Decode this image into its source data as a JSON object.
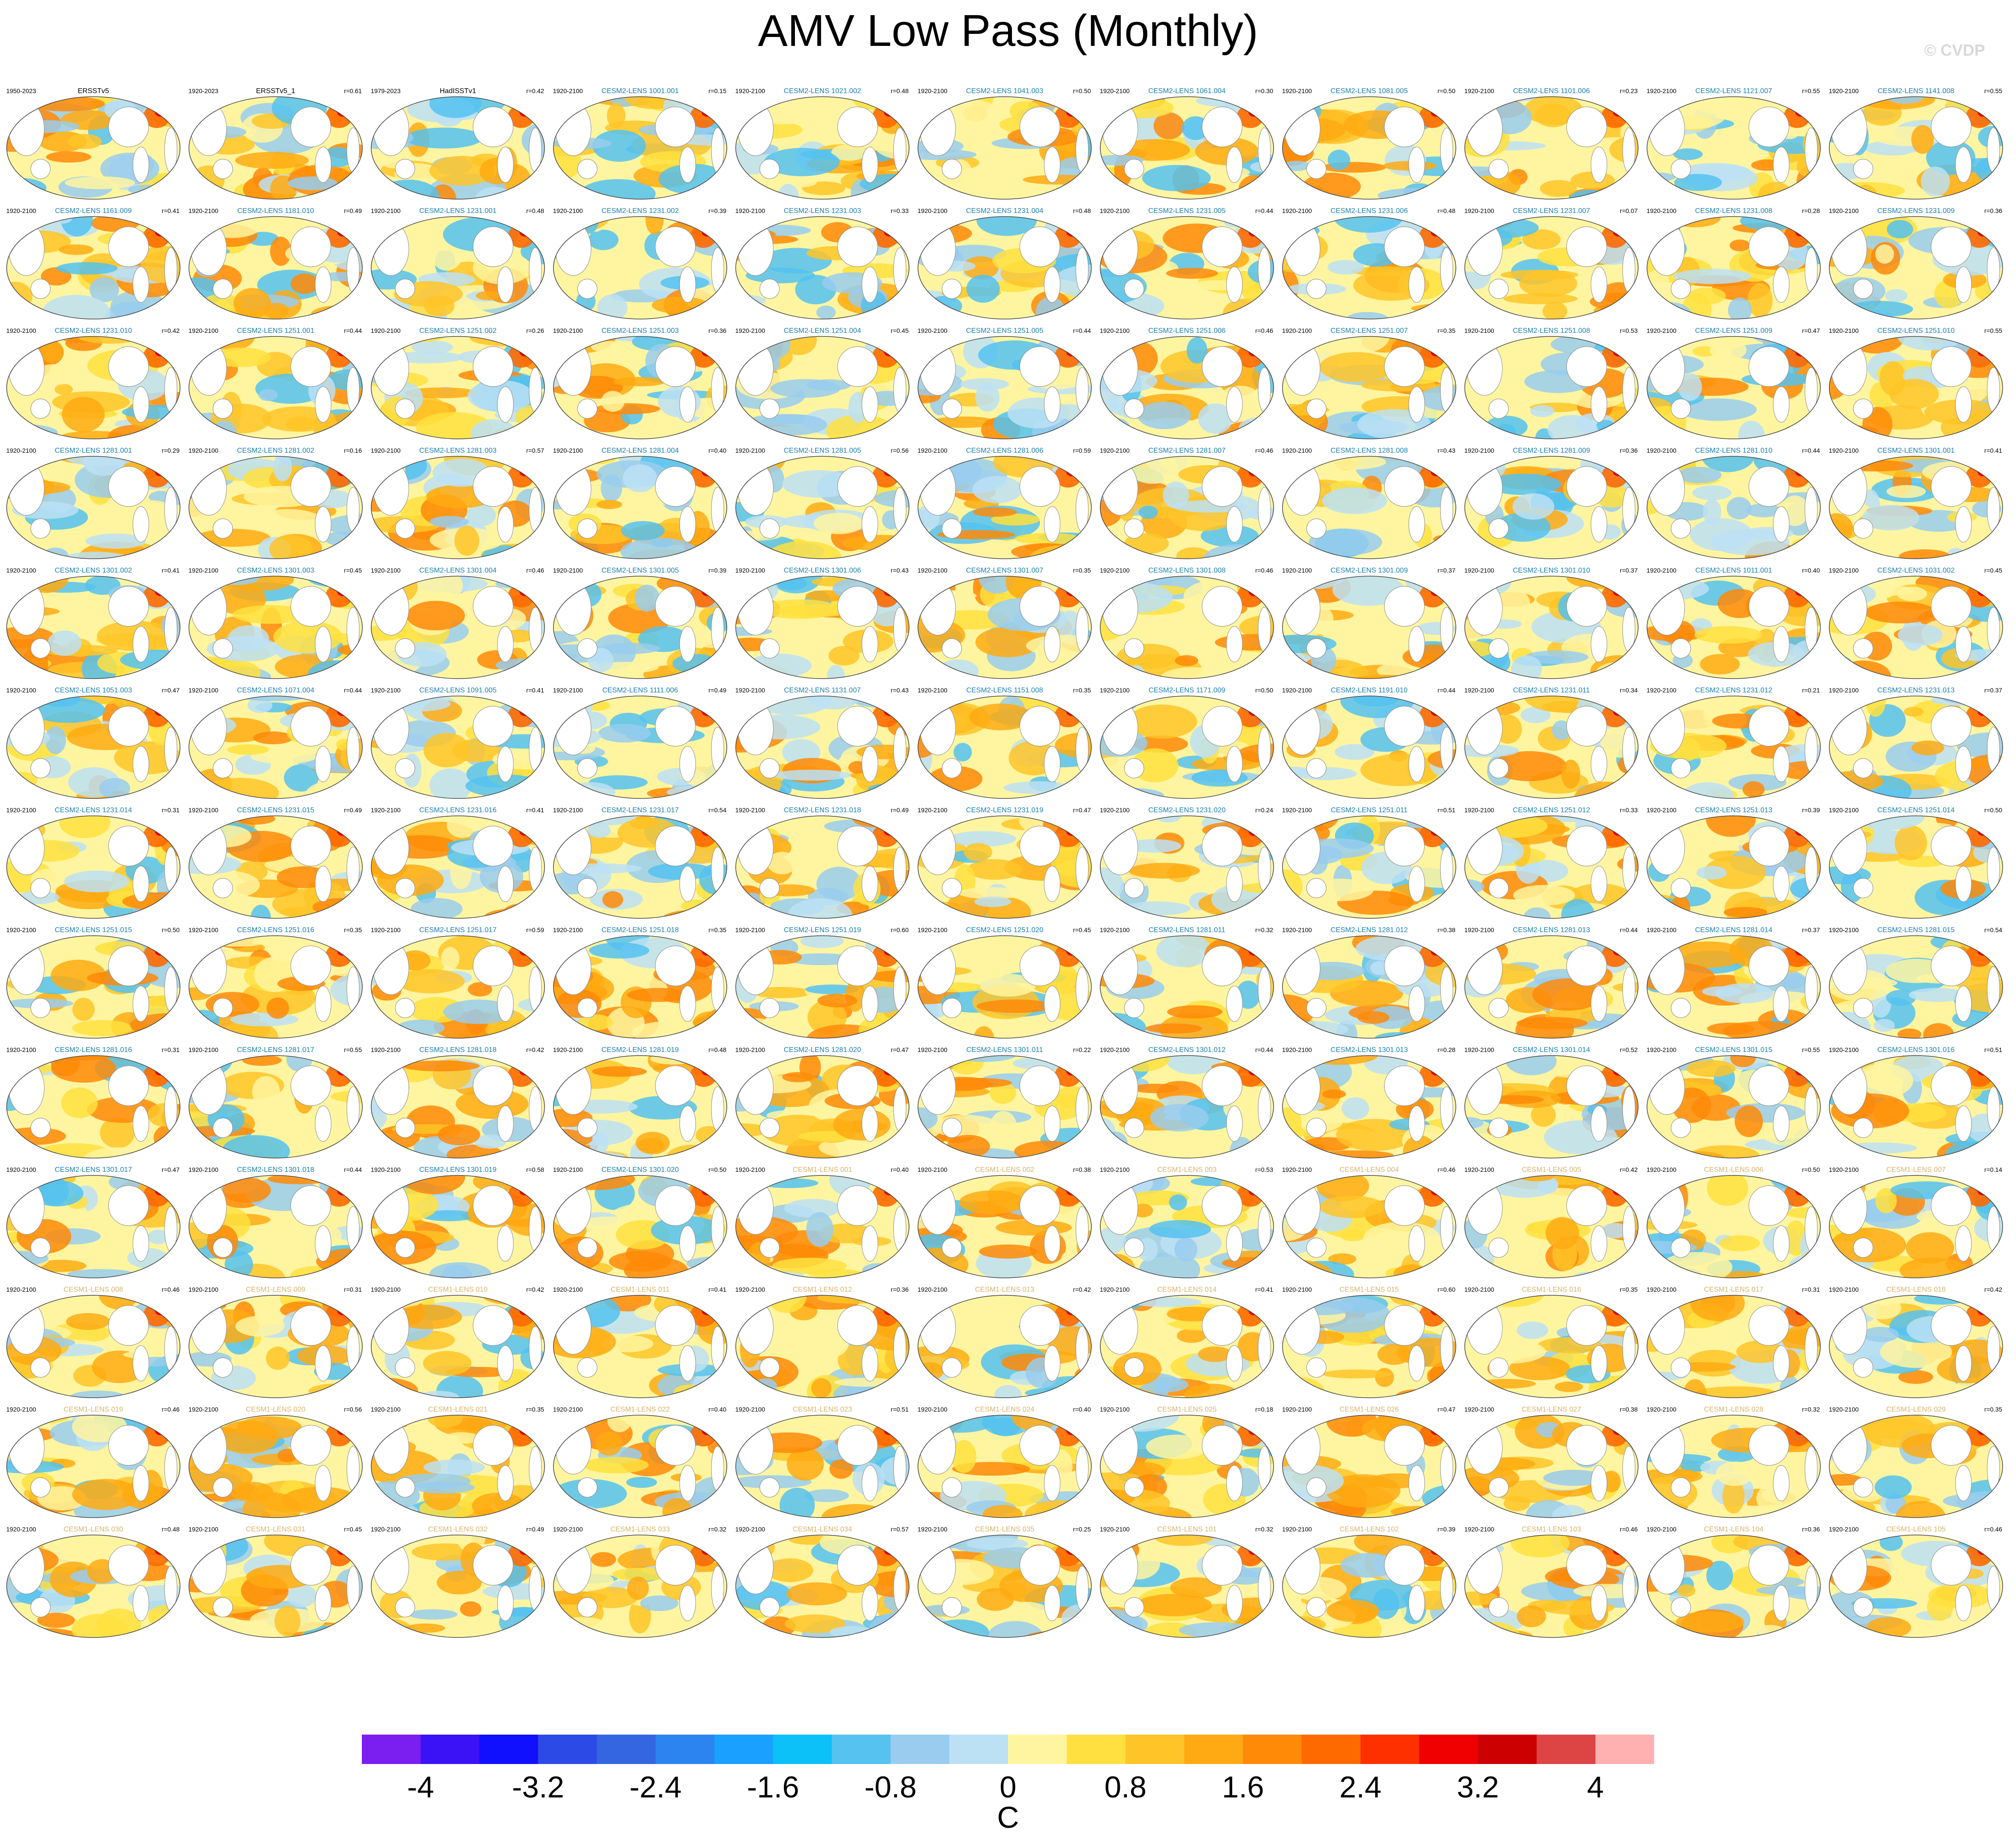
{
  "title": "AMV Low Pass (Monthly)",
  "watermark": "© CVDP",
  "units": "C",
  "colorbar": {
    "colors": [
      "#7b1ef0",
      "#3a12f5",
      "#1010ff",
      "#2c4be6",
      "#3366e0",
      "#2b84f0",
      "#1aa0ff",
      "#0cc0f8",
      "#55c2f0",
      "#99ccee",
      "#bce0f4",
      "#fff5a0",
      "#ffe040",
      "#ffc428",
      "#ffaa12",
      "#ff8a08",
      "#ff6a00",
      "#ff3000",
      "#f00000",
      "#cc0000",
      "#dd4444",
      "#ffb0b0"
    ],
    "tick_labels": [
      "-4",
      "-3.2",
      "-2.4",
      "-1.6",
      "-0.8",
      "0",
      "0.8",
      "1.6",
      "2.4",
      "3.2",
      "4"
    ]
  },
  "panel_name_colors": {
    "obs": "#000000",
    "cesm2": "#1a7fb0",
    "cesm1": "#d9b36a"
  },
  "panels": [
    {
      "years": "1950-2023",
      "name": "ERSSTv5",
      "r": "",
      "group": "obs"
    },
    {
      "years": "1920-2023",
      "name": "ERSSTv5_1",
      "r": "r=0.61",
      "group": "obs"
    },
    {
      "years": "1979-2023",
      "name": "HadISSTv1",
      "r": "r=0.42",
      "group": "obs"
    },
    {
      "years": "1920-2100",
      "name": "CESM2-LENS 1001.001",
      "r": "r=0.15",
      "group": "cesm2"
    },
    {
      "years": "1920-2100",
      "name": "CESM2-LENS 1021.002",
      "r": "r=0.48",
      "group": "cesm2"
    },
    {
      "years": "1920-2100",
      "name": "CESM2-LENS 1041.003",
      "r": "r=0.50",
      "group": "cesm2"
    },
    {
      "years": "1920-2100",
      "name": "CESM2-LENS 1061.004",
      "r": "r=0.30",
      "group": "cesm2"
    },
    {
      "years": "1920-2100",
      "name": "CESM2-LENS 1081.005",
      "r": "r=0.50",
      "group": "cesm2"
    },
    {
      "years": "1920-2100",
      "name": "CESM2-LENS 1101.006",
      "r": "r=0.23",
      "group": "cesm2"
    },
    {
      "years": "1920-2100",
      "name": "CESM2-LENS 1121.007",
      "r": "r=0.55",
      "group": "cesm2"
    },
    {
      "years": "1920-2100",
      "name": "CESM2-LENS 1141.008",
      "r": "r=0.55",
      "group": "cesm2"
    },
    {
      "years": "1920-2100",
      "name": "CESM2-LENS 1161.009",
      "r": "r=0.41",
      "group": "cesm2"
    },
    {
      "years": "1920-2100",
      "name": "CESM2-LENS 1181.010",
      "r": "r=0.49",
      "group": "cesm2"
    },
    {
      "years": "1920-2100",
      "name": "CESM2-LENS 1231.001",
      "r": "r=0.48",
      "group": "cesm2"
    },
    {
      "years": "1920-2100",
      "name": "CESM2-LENS 1231.002",
      "r": "r=0.39",
      "group": "cesm2"
    },
    {
      "years": "1920-2100",
      "name": "CESM2-LENS 1231.003",
      "r": "r=0.33",
      "group": "cesm2"
    },
    {
      "years": "1920-2100",
      "name": "CESM2-LENS 1231.004",
      "r": "r=0.48",
      "group": "cesm2"
    },
    {
      "years": "1920-2100",
      "name": "CESM2-LENS 1231.005",
      "r": "r=0.44",
      "group": "cesm2"
    },
    {
      "years": "1920-2100",
      "name": "CESM2-LENS 1231.006",
      "r": "r=0.48",
      "group": "cesm2"
    },
    {
      "years": "1920-2100",
      "name": "CESM2-LENS 1231.007",
      "r": "r=0.07",
      "group": "cesm2"
    },
    {
      "years": "1920-2100",
      "name": "CESM2-LENS 1231.008",
      "r": "r=0.28",
      "group": "cesm2"
    },
    {
      "years": "1920-2100",
      "name": "CESM2-LENS 1231.009",
      "r": "r=0.36",
      "group": "cesm2"
    },
    {
      "years": "1920-2100",
      "name": "CESM2-LENS 1231.010",
      "r": "r=0.42",
      "group": "cesm2"
    },
    {
      "years": "1920-2100",
      "name": "CESM2-LENS 1251.001",
      "r": "r=0.44",
      "group": "cesm2"
    },
    {
      "years": "1920-2100",
      "name": "CESM2-LENS 1251.002",
      "r": "r=0.26",
      "group": "cesm2"
    },
    {
      "years": "1920-2100",
      "name": "CESM2-LENS 1251.003",
      "r": "r=0.36",
      "group": "cesm2"
    },
    {
      "years": "1920-2100",
      "name": "CESM2-LENS 1251.004",
      "r": "r=0.45",
      "group": "cesm2"
    },
    {
      "years": "1920-2100",
      "name": "CESM2-LENS 1251.005",
      "r": "r=0.44",
      "group": "cesm2"
    },
    {
      "years": "1920-2100",
      "name": "CESM2-LENS 1251.006",
      "r": "r=0.46",
      "group": "cesm2"
    },
    {
      "years": "1920-2100",
      "name": "CESM2-LENS 1251.007",
      "r": "r=0.35",
      "group": "cesm2"
    },
    {
      "years": "1920-2100",
      "name": "CESM2-LENS 1251.008",
      "r": "r=0.53",
      "group": "cesm2"
    },
    {
      "years": "1920-2100",
      "name": "CESM2-LENS 1251.009",
      "r": "r=0.47",
      "group": "cesm2"
    },
    {
      "years": "1920-2100",
      "name": "CESM2-LENS 1251.010",
      "r": "r=0.55",
      "group": "cesm2"
    },
    {
      "years": "1920-2100",
      "name": "CESM2-LENS 1281.001",
      "r": "r=0.29",
      "group": "cesm2"
    },
    {
      "years": "1920-2100",
      "name": "CESM2-LENS 1281.002",
      "r": "r=0.16",
      "group": "cesm2"
    },
    {
      "years": "1920-2100",
      "name": "CESM2-LENS 1281.003",
      "r": "r=0.57",
      "group": "cesm2"
    },
    {
      "years": "1920-2100",
      "name": "CESM2-LENS 1281.004",
      "r": "r=0.40",
      "group": "cesm2"
    },
    {
      "years": "1920-2100",
      "name": "CESM2-LENS 1281.005",
      "r": "r=0.56",
      "group": "cesm2"
    },
    {
      "years": "1920-2100",
      "name": "CESM2-LENS 1281.006",
      "r": "r=0.59",
      "group": "cesm2"
    },
    {
      "years": "1920-2100",
      "name": "CESM2-LENS 1281.007",
      "r": "r=0.46",
      "group": "cesm2"
    },
    {
      "years": "1920-2100",
      "name": "CESM2-LENS 1281.008",
      "r": "r=0.43",
      "group": "cesm2"
    },
    {
      "years": "1920-2100",
      "name": "CESM2-LENS 1281.009",
      "r": "r=0.36",
      "group": "cesm2"
    },
    {
      "years": "1920-2100",
      "name": "CESM2-LENS 1281.010",
      "r": "r=0.44",
      "group": "cesm2"
    },
    {
      "years": "1920-2100",
      "name": "CESM2-LENS 1301.001",
      "r": "r=0.41",
      "group": "cesm2"
    },
    {
      "years": "1920-2100",
      "name": "CESM2-LENS 1301.002",
      "r": "r=0.41",
      "group": "cesm2"
    },
    {
      "years": "1920-2100",
      "name": "CESM2-LENS 1301.003",
      "r": "r=0.45",
      "group": "cesm2"
    },
    {
      "years": "1920-2100",
      "name": "CESM2-LENS 1301.004",
      "r": "r=0.46",
      "group": "cesm2"
    },
    {
      "years": "1920-2100",
      "name": "CESM2-LENS 1301.005",
      "r": "r=0.39",
      "group": "cesm2"
    },
    {
      "years": "1920-2100",
      "name": "CESM2-LENS 1301.006",
      "r": "r=0.43",
      "group": "cesm2"
    },
    {
      "years": "1920-2100",
      "name": "CESM2-LENS 1301.007",
      "r": "r=0.35",
      "group": "cesm2"
    },
    {
      "years": "1920-2100",
      "name": "CESM2-LENS 1301.008",
      "r": "r=0.46",
      "group": "cesm2"
    },
    {
      "years": "1920-2100",
      "name": "CESM2-LENS 1301.009",
      "r": "r=0.37",
      "group": "cesm2"
    },
    {
      "years": "1920-2100",
      "name": "CESM2-LENS 1301.010",
      "r": "r=0.37",
      "group": "cesm2"
    },
    {
      "years": "1920-2100",
      "name": "CESM2-LENS 1011.001",
      "r": "r=0.40",
      "group": "cesm2"
    },
    {
      "years": "1920-2100",
      "name": "CESM2-LENS 1031.002",
      "r": "r=0.45",
      "group": "cesm2"
    },
    {
      "years": "1920-2100",
      "name": "CESM2-LENS 1051.003",
      "r": "r=0.47",
      "group": "cesm2"
    },
    {
      "years": "1920-2100",
      "name": "CESM2-LENS 1071.004",
      "r": "r=0.44",
      "group": "cesm2"
    },
    {
      "years": "1920-2100",
      "name": "CESM2-LENS 1091.005",
      "r": "r=0.41",
      "group": "cesm2"
    },
    {
      "years": "1920-2100",
      "name": "CESM2-LENS 1111.006",
      "r": "r=0.49",
      "group": "cesm2"
    },
    {
      "years": "1920-2100",
      "name": "CESM2-LENS 1131.007",
      "r": "r=0.43",
      "group": "cesm2"
    },
    {
      "years": "1920-2100",
      "name": "CESM2-LENS 1151.008",
      "r": "r=0.35",
      "group": "cesm2"
    },
    {
      "years": "1920-2100",
      "name": "CESM2-LENS 1171.009",
      "r": "r=0.50",
      "group": "cesm2"
    },
    {
      "years": "1920-2100",
      "name": "CESM2-LENS 1191.010",
      "r": "r=0.44",
      "group": "cesm2"
    },
    {
      "years": "1920-2100",
      "name": "CESM2-LENS 1231.011",
      "r": "r=0.34",
      "group": "cesm2"
    },
    {
      "years": "1920-2100",
      "name": "CESM2-LENS 1231.012",
      "r": "r=0.21",
      "group": "cesm2"
    },
    {
      "years": "1920-2100",
      "name": "CESM2-LENS 1231.013",
      "r": "r=0.37",
      "group": "cesm2"
    },
    {
      "years": "1920-2100",
      "name": "CESM2-LENS 1231.014",
      "r": "r=0.31",
      "group": "cesm2"
    },
    {
      "years": "1920-2100",
      "name": "CESM2-LENS 1231.015",
      "r": "r=0.49",
      "group": "cesm2"
    },
    {
      "years": "1920-2100",
      "name": "CESM2-LENS 1231.016",
      "r": "r=0.41",
      "group": "cesm2"
    },
    {
      "years": "1920-2100",
      "name": "CESM2-LENS 1231.017",
      "r": "r=0.54",
      "group": "cesm2"
    },
    {
      "years": "1920-2100",
      "name": "CESM2-LENS 1231.018",
      "r": "r=0.49",
      "group": "cesm2"
    },
    {
      "years": "1920-2100",
      "name": "CESM2-LENS 1231.019",
      "r": "r=0.47",
      "group": "cesm2"
    },
    {
      "years": "1920-2100",
      "name": "CESM2-LENS 1231.020",
      "r": "r=0.24",
      "group": "cesm2"
    },
    {
      "years": "1920-2100",
      "name": "CESM2-LENS 1251.011",
      "r": "r=0.51",
      "group": "cesm2"
    },
    {
      "years": "1920-2100",
      "name": "CESM2-LENS 1251.012",
      "r": "r=0.33",
      "group": "cesm2"
    },
    {
      "years": "1920-2100",
      "name": "CESM2-LENS 1251.013",
      "r": "r=0.39",
      "group": "cesm2"
    },
    {
      "years": "1920-2100",
      "name": "CESM2-LENS 1251.014",
      "r": "r=0.50",
      "group": "cesm2"
    },
    {
      "years": "1920-2100",
      "name": "CESM2-LENS 1251.015",
      "r": "r=0.50",
      "group": "cesm2"
    },
    {
      "years": "1920-2100",
      "name": "CESM2-LENS 1251.016",
      "r": "r=0.35",
      "group": "cesm2"
    },
    {
      "years": "1920-2100",
      "name": "CESM2-LENS 1251.017",
      "r": "r=0.59",
      "group": "cesm2"
    },
    {
      "years": "1920-2100",
      "name": "CESM2-LENS 1251.018",
      "r": "r=0.35",
      "group": "cesm2"
    },
    {
      "years": "1920-2100",
      "name": "CESM2-LENS 1251.019",
      "r": "r=0.60",
      "group": "cesm2"
    },
    {
      "years": "1920-2100",
      "name": "CESM2-LENS 1251.020",
      "r": "r=0.45",
      "group": "cesm2"
    },
    {
      "years": "1920-2100",
      "name": "CESM2-LENS 1281.011",
      "r": "r=0.32",
      "group": "cesm2"
    },
    {
      "years": "1920-2100",
      "name": "CESM2-LENS 1281.012",
      "r": "r=0.38",
      "group": "cesm2"
    },
    {
      "years": "1920-2100",
      "name": "CESM2-LENS 1281.013",
      "r": "r=0.44",
      "group": "cesm2"
    },
    {
      "years": "1920-2100",
      "name": "CESM2-LENS 1281.014",
      "r": "r=0.37",
      "group": "cesm2"
    },
    {
      "years": "1920-2100",
      "name": "CESM2-LENS 1281.015",
      "r": "r=0.54",
      "group": "cesm2"
    },
    {
      "years": "1920-2100",
      "name": "CESM2-LENS 1281.016",
      "r": "r=0.31",
      "group": "cesm2"
    },
    {
      "years": "1920-2100",
      "name": "CESM2-LENS 1281.017",
      "r": "r=0.55",
      "group": "cesm2"
    },
    {
      "years": "1920-2100",
      "name": "CESM2-LENS 1281.018",
      "r": "r=0.42",
      "group": "cesm2"
    },
    {
      "years": "1920-2100",
      "name": "CESM2-LENS 1281.019",
      "r": "r=0.48",
      "group": "cesm2"
    },
    {
      "years": "1920-2100",
      "name": "CESM2-LENS 1281.020",
      "r": "r=0.47",
      "group": "cesm2"
    },
    {
      "years": "1920-2100",
      "name": "CESM2-LENS 1301.011",
      "r": "r=0.22",
      "group": "cesm2"
    },
    {
      "years": "1920-2100",
      "name": "CESM2-LENS 1301.012",
      "r": "r=0.44",
      "group": "cesm2"
    },
    {
      "years": "1920-2100",
      "name": "CESM2-LENS 1301.013",
      "r": "r=0.28",
      "group": "cesm2"
    },
    {
      "years": "1920-2100",
      "name": "CESM2-LENS 1301.014",
      "r": "r=0.52",
      "group": "cesm2"
    },
    {
      "years": "1920-2100",
      "name": "CESM2-LENS 1301.015",
      "r": "r=0.55",
      "group": "cesm2"
    },
    {
      "years": "1920-2100",
      "name": "CESM2-LENS 1301.016",
      "r": "r=0.51",
      "group": "cesm2"
    },
    {
      "years": "1920-2100",
      "name": "CESM2-LENS 1301.017",
      "r": "r=0.47",
      "group": "cesm2"
    },
    {
      "years": "1920-2100",
      "name": "CESM2-LENS 1301.018",
      "r": "r=0.44",
      "group": "cesm2"
    },
    {
      "years": "1920-2100",
      "name": "CESM2-LENS 1301.019",
      "r": "r=0.58",
      "group": "cesm2"
    },
    {
      "years": "1920-2100",
      "name": "CESM2-LENS 1301.020",
      "r": "r=0.50",
      "group": "cesm2"
    },
    {
      "years": "1920-2100",
      "name": "CESM1-LENS 001",
      "r": "r=0.40",
      "group": "cesm1"
    },
    {
      "years": "1920-2100",
      "name": "CESM1-LENS 002",
      "r": "r=0.38",
      "group": "cesm1"
    },
    {
      "years": "1920-2100",
      "name": "CESM1-LENS 003",
      "r": "r=0.53",
      "group": "cesm1"
    },
    {
      "years": "1920-2100",
      "name": "CESM1-LENS 004",
      "r": "r=0.46",
      "group": "cesm1"
    },
    {
      "years": "1920-2100",
      "name": "CESM1-LENS 005",
      "r": "r=0.42",
      "group": "cesm1"
    },
    {
      "years": "1920-2100",
      "name": "CESM1-LENS 006",
      "r": "r=0.50",
      "group": "cesm1"
    },
    {
      "years": "1920-2100",
      "name": "CESM1-LENS 007",
      "r": "r=0.14",
      "group": "cesm1"
    },
    {
      "years": "1920-2100",
      "name": "CESM1-LENS 008",
      "r": "r=0.46",
      "group": "cesm1"
    },
    {
      "years": "1920-2100",
      "name": "CESM1-LENS 009",
      "r": "r=0.31",
      "group": "cesm1"
    },
    {
      "years": "1920-2100",
      "name": "CESM1-LENS 010",
      "r": "r=0.42",
      "group": "cesm1"
    },
    {
      "years": "1920-2100",
      "name": "CESM1-LENS 011",
      "r": "r=0.41",
      "group": "cesm1"
    },
    {
      "years": "1920-2100",
      "name": "CESM1-LENS 012",
      "r": "r=0.36",
      "group": "cesm1"
    },
    {
      "years": "1920-2100",
      "name": "CESM1-LENS 013",
      "r": "r=0.42",
      "group": "cesm1"
    },
    {
      "years": "1920-2100",
      "name": "CESM1-LENS 014",
      "r": "r=0.41",
      "group": "cesm1"
    },
    {
      "years": "1920-2100",
      "name": "CESM1-LENS 015",
      "r": "r=0.60",
      "group": "cesm1"
    },
    {
      "years": "1920-2100",
      "name": "CESM1-LENS 016",
      "r": "r=0.35",
      "group": "cesm1"
    },
    {
      "years": "1920-2100",
      "name": "CESM1-LENS 017",
      "r": "r=0.31",
      "group": "cesm1"
    },
    {
      "years": "1920-2100",
      "name": "CESM1-LENS 018",
      "r": "r=0.42",
      "group": "cesm1"
    },
    {
      "years": "1920-2100",
      "name": "CESM1-LENS 019",
      "r": "r=0.46",
      "group": "cesm1"
    },
    {
      "years": "1920-2100",
      "name": "CESM1-LENS 020",
      "r": "r=0.56",
      "group": "cesm1"
    },
    {
      "years": "1920-2100",
      "name": "CESM1-LENS 021",
      "r": "r=0.35",
      "group": "cesm1"
    },
    {
      "years": "1920-2100",
      "name": "CESM1-LENS 022",
      "r": "r=0.40",
      "group": "cesm1"
    },
    {
      "years": "1920-2100",
      "name": "CESM1-LENS 023",
      "r": "r=0.51",
      "group": "cesm1"
    },
    {
      "years": "1920-2100",
      "name": "CESM1-LENS 024",
      "r": "r=0.40",
      "group": "cesm1"
    },
    {
      "years": "1920-2100",
      "name": "CESM1-LENS 025",
      "r": "r=0.18",
      "group": "cesm1"
    },
    {
      "years": "1920-2100",
      "name": "CESM1-LENS 026",
      "r": "r=0.47",
      "group": "cesm1"
    },
    {
      "years": "1920-2100",
      "name": "CESM1-LENS 027",
      "r": "r=0.38",
      "group": "cesm1"
    },
    {
      "years": "1920-2100",
      "name": "CESM1-LENS 028",
      "r": "r=0.32",
      "group": "cesm1"
    },
    {
      "years": "1920-2100",
      "name": "CESM1-LENS 029",
      "r": "r=0.35",
      "group": "cesm1"
    },
    {
      "years": "1920-2100",
      "name": "CESM1-LENS 030",
      "r": "r=0.48",
      "group": "cesm1"
    },
    {
      "years": "1920-2100",
      "name": "CESM1-LENS 031",
      "r": "r=0.45",
      "group": "cesm1"
    },
    {
      "years": "1920-2100",
      "name": "CESM1-LENS 032",
      "r": "r=0.49",
      "group": "cesm1"
    },
    {
      "years": "1920-2100",
      "name": "CESM1-LENS 033",
      "r": "r=0.32",
      "group": "cesm1"
    },
    {
      "years": "1920-2100",
      "name": "CESM1-LENS 034",
      "r": "r=0.57",
      "group": "cesm1"
    },
    {
      "years": "1920-2100",
      "name": "CESM1-LENS 035",
      "r": "r=0.25",
      "group": "cesm1"
    },
    {
      "years": "1920-2100",
      "name": "CESM1-LENS 101",
      "r": "r=0.32",
      "group": "cesm1"
    },
    {
      "years": "1920-2100",
      "name": "CESM1-LENS 102",
      "r": "r=0.39",
      "group": "cesm1"
    },
    {
      "years": "1920-2100",
      "name": "CESM1-LENS 103",
      "r": "r=0.46",
      "group": "cesm1"
    },
    {
      "years": "1920-2100",
      "name": "CESM1-LENS 104",
      "r": "r=0.36",
      "group": "cesm1"
    },
    {
      "years": "1920-2100",
      "name": "CESM1-LENS 105",
      "r": "r=0.46",
      "group": "cesm1"
    }
  ]
}
